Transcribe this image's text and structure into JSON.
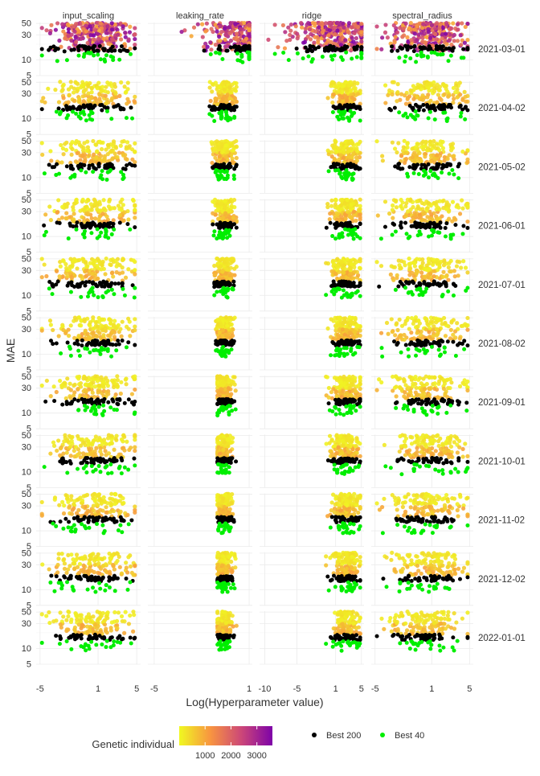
{
  "chart_data": {
    "type": "scatter",
    "facet_layout": "grid",
    "xlabel": "Log(Hyperparameter value)",
    "ylabel": "MAE",
    "y_scale": "log10",
    "ylim": [
      5,
      52
    ],
    "y_ticks": [
      5,
      10,
      30,
      50
    ],
    "column_facets": [
      {
        "label": "input_scaling",
        "xlim": [
          -5.4,
          5.4
        ],
        "x_ticks": [
          -5,
          1,
          5
        ]
      },
      {
        "label": "leaking_rate",
        "xlim": [
          -5.4,
          1.2
        ],
        "x_ticks": [
          -5,
          1
        ]
      },
      {
        "label": "ridge",
        "xlim": [
          -10.8,
          5.4
        ],
        "x_ticks": [
          -10,
          -5,
          1,
          5
        ]
      },
      {
        "label": "spectral_radius",
        "xlim": [
          -5.4,
          5.4
        ],
        "x_ticks": [
          -5,
          1,
          5
        ]
      }
    ],
    "row_facets": [
      "2021-03-01",
      "2021-04-02",
      "2021-05-02",
      "2021-06-01",
      "2021-07-01",
      "2021-08-02",
      "2021-09-01",
      "2021-10-01",
      "2021-11-02",
      "2021-12-02",
      "2022-01-01"
    ],
    "color_legend": {
      "title": "Genetic individual",
      "range": [
        0,
        3600
      ],
      "ticks": [
        1000,
        2000,
        3000
      ],
      "colors": [
        "#f0f921",
        "#f89540",
        "#cc4778",
        "#7e03a8"
      ]
    },
    "point_legend": [
      {
        "label": "Best 200",
        "color": "#000000"
      },
      {
        "label": "Best 40",
        "color": "#00ee00"
      }
    ],
    "grid": true,
    "legend_position": "bottom",
    "approximate_series": {
      "best_200_mae_band": [
        14,
        19
      ],
      "best_40_mae_band": [
        9,
        14
      ],
      "population_mae_band": [
        15,
        50
      ],
      "x_spread": {
        "input_scaling": [
          -4.8,
          4.8
        ],
        "leaking_rate_2021_03": [
          -4.8,
          1.0
        ],
        "leaking_rate_late": [
          -1.6,
          0.2
        ],
        "ridge_2021_03": [
          -10.5,
          5.0
        ],
        "ridge_late": [
          -0.5,
          4.8
        ],
        "spectral_radius": [
          -4.8,
          4.8
        ]
      }
    }
  }
}
